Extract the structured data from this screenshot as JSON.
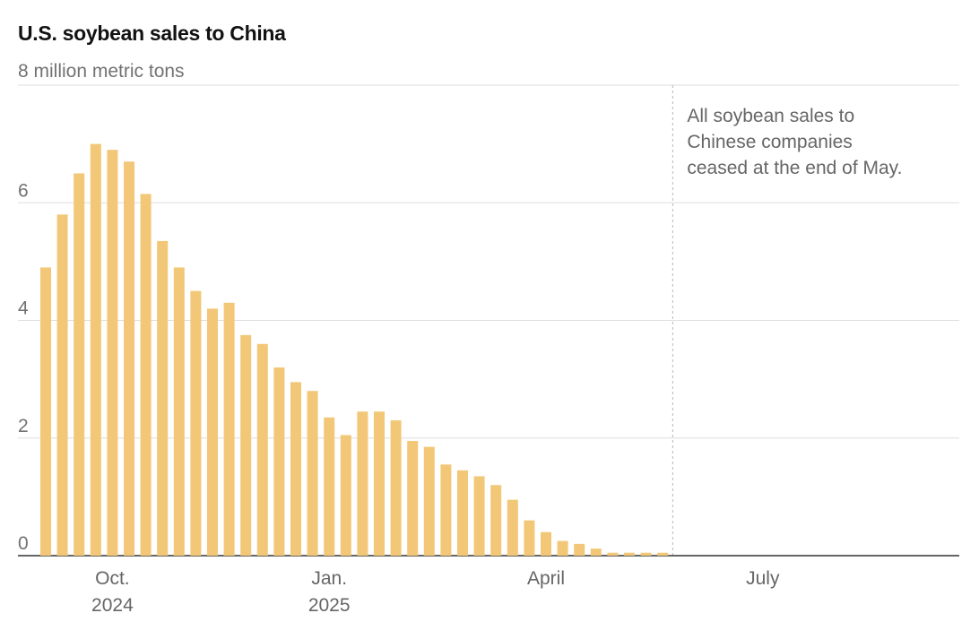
{
  "chart_data": {
    "type": "bar",
    "title": "U.S. soybean sales to China",
    "y_unit_label": "million metric tons",
    "ylim": [
      0,
      8
    ],
    "yticks": [
      0,
      2,
      4,
      6,
      8
    ],
    "grid": true,
    "bar_color": "#F2C777",
    "values": [
      4.9,
      5.8,
      6.5,
      7.0,
      6.9,
      6.7,
      6.15,
      5.35,
      4.9,
      4.5,
      4.2,
      4.3,
      3.75,
      3.6,
      3.2,
      2.95,
      2.8,
      2.35,
      2.05,
      2.45,
      2.45,
      2.3,
      1.95,
      1.85,
      1.55,
      1.45,
      1.35,
      1.2,
      0.95,
      0.6,
      0.4,
      0.25,
      0.2,
      0.12,
      0.05,
      0.05,
      0.05,
      0.05
    ],
    "x_labels": [
      {
        "line1": "Oct.",
        "line2": "2024",
        "bar_index": 4
      },
      {
        "line1": "Jan.",
        "line2": "2025",
        "bar_index": 17
      },
      {
        "line1": "April",
        "line2": "",
        "bar_index": 30
      },
      {
        "line1": "July",
        "line2": "",
        "bar_index": 43
      }
    ],
    "annotation": {
      "lines": [
        "All soybean sales to",
        "Chinese companies",
        "ceased at the end of May."
      ]
    }
  }
}
